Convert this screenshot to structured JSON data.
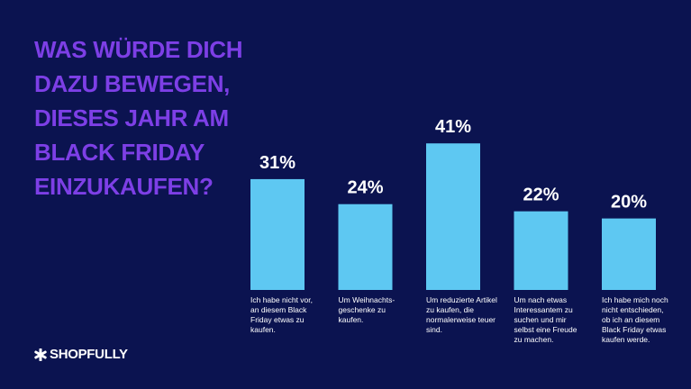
{
  "chart_data": {
    "type": "bar",
    "title": "WAS WÜRDE DICH DAZU BEWEGEN, DIESES JAHR AM BLACK FRIDAY EINZUKAUFEN?",
    "categories": [
      "Ich habe nicht vor, an diesem Black Friday etwas zu kaufen.",
      "Um Weihnachts-geschenke zu kaufen.",
      "Um reduzierte Artikel zu kaufen, die normalerweise teuer sind.",
      "Um nach etwas Interessantem zu suchen und mir selbst eine Freude zu machen.",
      "Ich habe mich noch nicht entschieden, ob ich an diesem Black Friday etwas kaufen werde."
    ],
    "values": [
      31,
      24,
      41,
      22,
      20
    ],
    "value_labels": [
      "31%",
      "24%",
      "41%",
      "22%",
      "20%"
    ],
    "color": "#5ec8f2"
  },
  "logo": "SHOPFULLY"
}
